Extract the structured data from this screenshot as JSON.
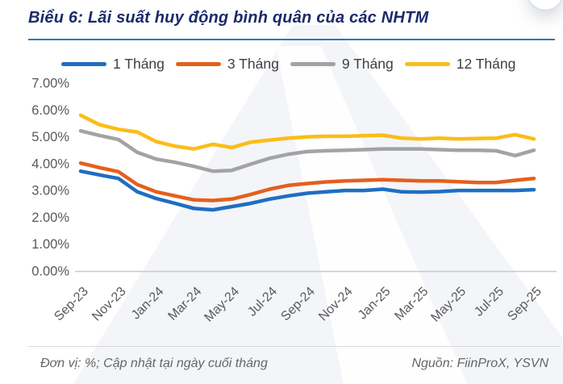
{
  "title": "Biểu 6: Lãi suất huy động bình quân của các NHTM",
  "footer": {
    "left": "Đơn vị: %; Cập nhật tại ngày cuối tháng",
    "right": "Nguồn: FiinProX, YSVN"
  },
  "colors": {
    "title_navy": "#1b2a6a",
    "title_rule_blue": "#2e76b8",
    "axis_text": "#595959",
    "axis_line": "#c9c9c9",
    "legend_text": "#404040",
    "series_1m": "#1f6ec2",
    "series_3m": "#e55f1d",
    "series_9m": "#a3a3a3",
    "series_12m": "#fcbc19"
  },
  "chart_data": {
    "type": "line",
    "title": "Biểu 6: Lãi suất huy động bình quân của các NHTM",
    "xlabel": "",
    "ylabel": "",
    "ylim": [
      0,
      7
    ],
    "grid": false,
    "legend_position": "top",
    "y_ticks": [
      "7.00%",
      "6.00%",
      "5.00%",
      "4.00%",
      "3.00%",
      "2.00%",
      "1.00%",
      "0.00%"
    ],
    "x": [
      "Sep-23",
      "Oct-23",
      "Nov-23",
      "Dec-23",
      "Jan-24",
      "Feb-24",
      "Mar-24",
      "Apr-24",
      "May-24",
      "Jun-24",
      "Jul-24",
      "Aug-24",
      "Sep-24",
      "Oct-24",
      "Nov-24",
      "Dec-24",
      "Jan-25",
      "Feb-25",
      "Mar-25",
      "Apr-25",
      "May-25",
      "Jun-25",
      "Jul-25",
      "Aug-25",
      "Sep-25"
    ],
    "x_tick_labels": [
      "Sep-23",
      "Nov-23",
      "Jan-24",
      "Mar-24",
      "May-24",
      "Jul-24",
      "Sep-24",
      "Nov-24",
      "Jan-25",
      "Mar-25",
      "May-25",
      "Jul-25",
      "Sep-25"
    ],
    "series": [
      {
        "name": "1 Tháng",
        "color": "#1f6ec2",
        "values": [
          3.72,
          3.58,
          3.45,
          2.95,
          2.7,
          2.52,
          2.33,
          2.28,
          2.4,
          2.52,
          2.68,
          2.8,
          2.9,
          2.95,
          3.0,
          3.0,
          3.05,
          2.95,
          2.94,
          2.96,
          3.0,
          3.0,
          3.0,
          3.0,
          3.03
        ]
      },
      {
        "name": "3 Tháng",
        "color": "#e55f1d",
        "values": [
          4.02,
          3.85,
          3.7,
          3.22,
          2.95,
          2.8,
          2.65,
          2.63,
          2.68,
          2.85,
          3.05,
          3.19,
          3.26,
          3.32,
          3.36,
          3.38,
          3.4,
          3.38,
          3.36,
          3.36,
          3.33,
          3.3,
          3.3,
          3.38,
          3.45
        ]
      },
      {
        "name": "9 Tháng",
        "color": "#a3a3a3",
        "values": [
          5.22,
          5.05,
          4.9,
          4.42,
          4.17,
          4.05,
          3.9,
          3.72,
          3.75,
          3.98,
          4.2,
          4.35,
          4.45,
          4.48,
          4.5,
          4.52,
          4.55,
          4.55,
          4.55,
          4.52,
          4.5,
          4.5,
          4.48,
          4.3,
          4.5
        ]
      },
      {
        "name": "12 Tháng",
        "color": "#fcbc19",
        "values": [
          5.8,
          5.45,
          5.28,
          5.18,
          4.82,
          4.65,
          4.55,
          4.72,
          4.6,
          4.8,
          4.88,
          4.95,
          5.0,
          5.02,
          5.02,
          5.04,
          5.06,
          4.95,
          4.92,
          4.95,
          4.92,
          4.94,
          4.95,
          5.08,
          4.92
        ]
      }
    ]
  }
}
